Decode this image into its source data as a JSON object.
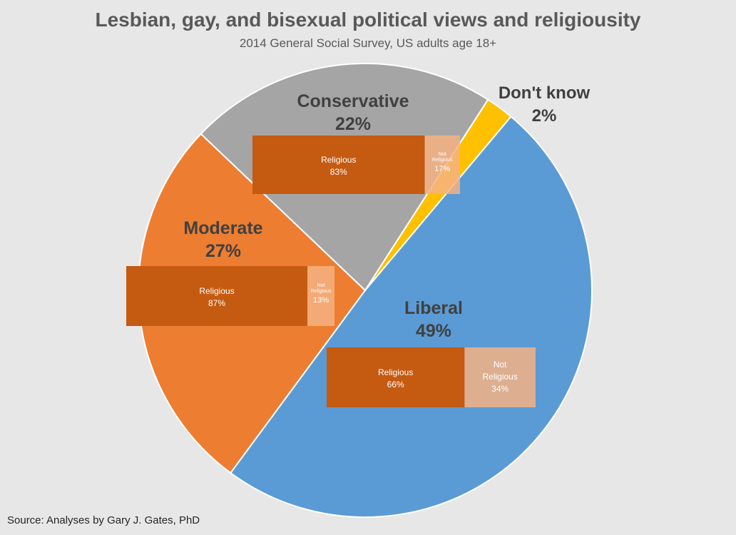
{
  "title": "Lesbian, gay, and bisexual political views and religiousity",
  "subtitle": "2014 General Social Survey, US adults age 18+",
  "source": "Source: Analyses by Gary J. Gates, PhD",
  "colors": {
    "liberal": "#5b9bd5",
    "moderate": "#ed7d31",
    "conservative": "#a5a5a5",
    "dont_know": "#ffc000",
    "religious": "#c55a11",
    "not_religious": "#f4b183"
  },
  "chart_data": [
    {
      "type": "pie",
      "categories": [
        "Liberal",
        "Moderate",
        "Conservative",
        "Don't know"
      ],
      "values": [
        49,
        27,
        22,
        2
      ],
      "value_labels": [
        "49%",
        "27%",
        "22%",
        "2%"
      ]
    },
    {
      "type": "bar",
      "orientation": "horizontal-stacked-100",
      "categories": [
        "Conservative",
        "Moderate",
        "Liberal"
      ],
      "series": [
        {
          "name": "Religious",
          "values": [
            83,
            87,
            66
          ],
          "labels": [
            "83%",
            "87%",
            "66%"
          ]
        },
        {
          "name": "Not Religious",
          "values": [
            17,
            13,
            34
          ],
          "labels": [
            "17%",
            "13%",
            "34%"
          ]
        }
      ]
    }
  ]
}
